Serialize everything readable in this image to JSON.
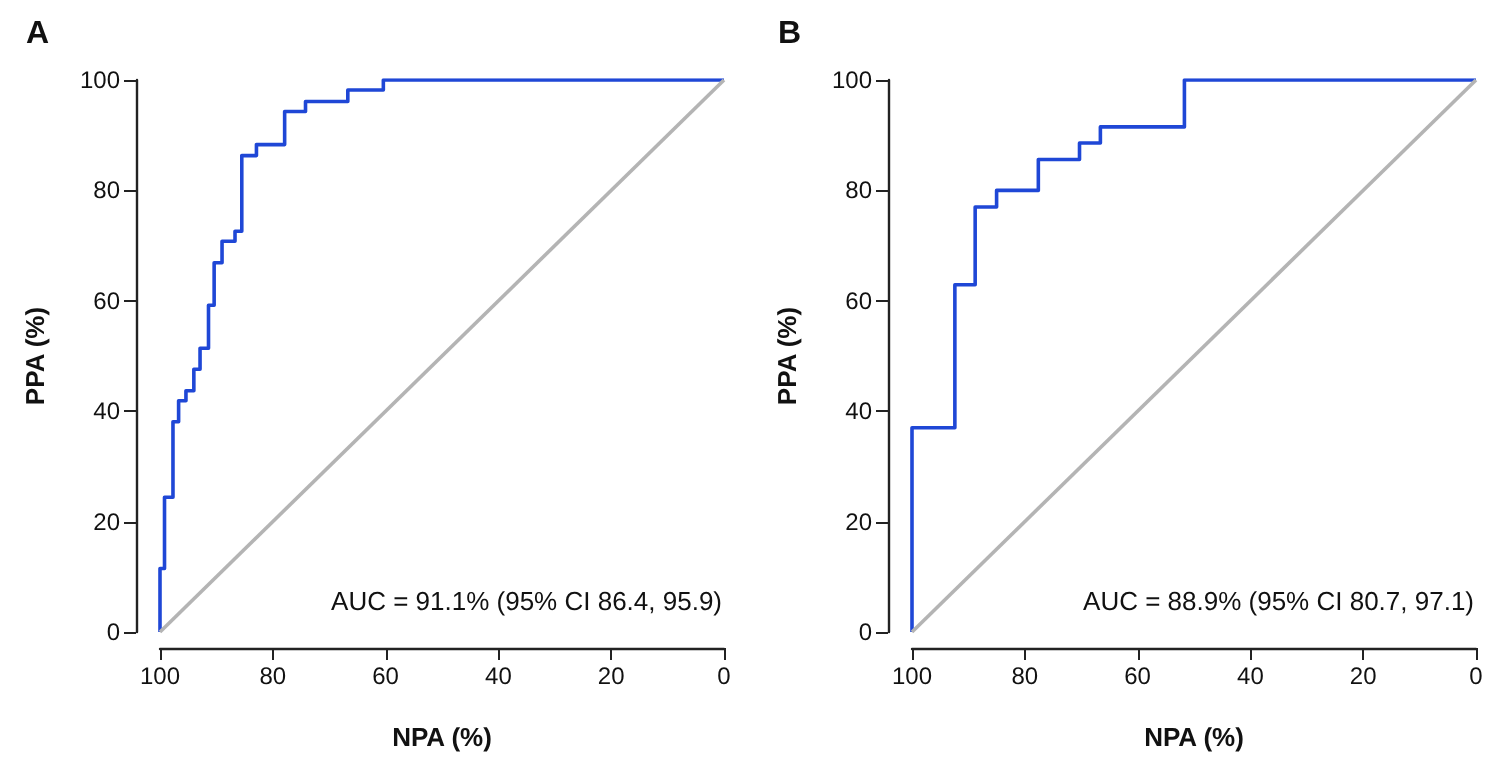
{
  "chart_data": [
    {
      "type": "line",
      "title": "A",
      "xlabel": "NPA (%)",
      "ylabel": "PPA (%)",
      "annotations": [
        "AUC = 91.1% (95% CI 86.4, 95.9)"
      ],
      "xlim": [
        100,
        0
      ],
      "ylim": [
        0,
        100
      ],
      "xticks": [
        100,
        80,
        60,
        40,
        20,
        0
      ],
      "yticks": [
        0,
        20,
        40,
        60,
        80,
        100
      ],
      "grid": false,
      "marker": "none",
      "line_style": "solid",
      "series": [
        {
          "color": "#1f47d6",
          "x": [
            100,
            100,
            99.2,
            99.2,
            97.7,
            97.7,
            96.7,
            96.7,
            95.4,
            95.4,
            94,
            94,
            92.9,
            92.9,
            91.4,
            91.4,
            90.4,
            90.4,
            89,
            89,
            86.7,
            86.7,
            85.5,
            85.5,
            82.9,
            82.9,
            77.9,
            77.9,
            74.2,
            74.2,
            66.7,
            66.7,
            60.4,
            60.4,
            0
          ],
          "values": [
            0,
            11.5,
            11.5,
            24.4,
            24.4,
            38.1,
            38.1,
            41.9,
            41.9,
            43.7,
            43.7,
            47.6,
            47.6,
            51.4,
            51.4,
            59.2,
            59.2,
            66.9,
            66.9,
            70.8,
            70.8,
            72.6,
            72.6,
            86.3,
            86.3,
            88.3,
            88.3,
            94.3,
            94.3,
            96.1,
            96.1,
            98.2,
            98.2,
            100,
            100
          ]
        },
        {
          "color": "#b4b4b4",
          "x": [
            100,
            0
          ],
          "values": [
            0,
            100
          ]
        }
      ]
    },
    {
      "type": "line",
      "title": "B",
      "xlabel": "NPA (%)",
      "ylabel": "PPA (%)",
      "annotations": [
        "AUC = 88.9% (95% CI 80.7, 97.1)"
      ],
      "xlim": [
        100,
        0
      ],
      "ylim": [
        0,
        100
      ],
      "xticks": [
        100,
        80,
        60,
        40,
        20,
        0
      ],
      "yticks": [
        0,
        20,
        40,
        60,
        80,
        100
      ],
      "grid": false,
      "marker": "none",
      "line_style": "solid",
      "series": [
        {
          "color": "#1f47d6",
          "x": [
            100,
            100,
            92.4,
            92.4,
            88.8,
            88.8,
            85,
            85,
            77.6,
            77.6,
            70.3,
            70.3,
            66.6,
            66.6,
            51.7,
            51.7,
            0
          ],
          "values": [
            0,
            37,
            37,
            62.9,
            62.9,
            77,
            77,
            80,
            80,
            85.6,
            85.6,
            88.6,
            88.6,
            91.5,
            91.5,
            100,
            100
          ]
        },
        {
          "color": "#b4b4b4",
          "x": [
            100,
            0
          ],
          "values": [
            0,
            100
          ]
        }
      ]
    }
  ]
}
